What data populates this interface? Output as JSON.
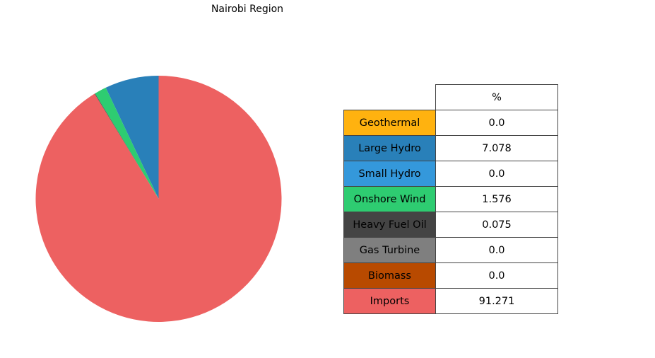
{
  "chart_data": {
    "type": "pie",
    "title": "Nairobi Region",
    "column_header": "%",
    "slices": [
      {
        "label": "Geothermal",
        "value": 0.0,
        "display": "0.0",
        "color": "#FFB20F"
      },
      {
        "label": "Large Hydro",
        "value": 7.078,
        "display": "7.078",
        "color": "#2980B9"
      },
      {
        "label": "Small Hydro",
        "value": 0.0,
        "display": "0.0",
        "color": "#3498DB"
      },
      {
        "label": "Onshore Wind",
        "value": 1.576,
        "display": "1.576",
        "color": "#2ECC71"
      },
      {
        "label": "Heavy Fuel Oil",
        "value": 0.075,
        "display": "0.075",
        "color": "#444444"
      },
      {
        "label": "Gas Turbine",
        "value": 0.0,
        "display": "0.0",
        "color": "#7F7F7F"
      },
      {
        "label": "Biomass",
        "value": 0.0,
        "display": "0.0",
        "color": "#B84A00"
      },
      {
        "label": "Imports",
        "value": 91.271,
        "display": "91.271",
        "color": "#ED6161"
      }
    ],
    "start_angle_deg": 90,
    "direction": "counterclockwise"
  }
}
